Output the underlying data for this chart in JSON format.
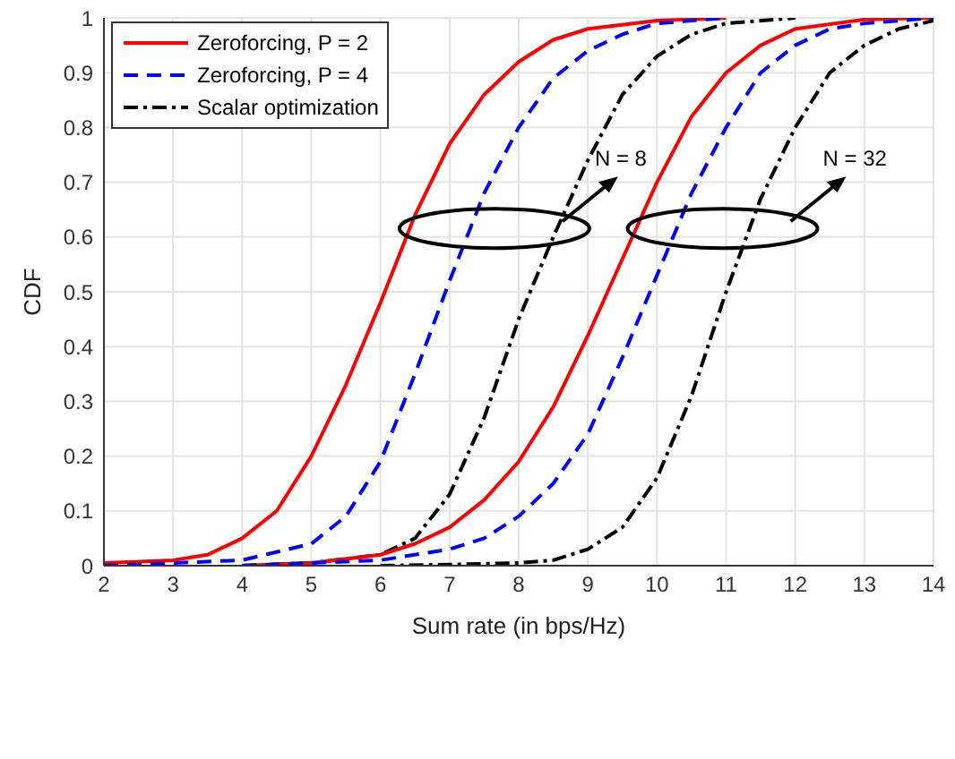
{
  "chart_data": {
    "type": "line",
    "xlabel": "Sum rate (in bps/Hz)",
    "ylabel": "CDF",
    "xlim": [
      2,
      14
    ],
    "xticks": [
      2,
      3,
      4,
      5,
      6,
      7,
      8,
      9,
      10,
      11,
      12,
      13,
      14
    ],
    "ylim": [
      0,
      1
    ],
    "yticks": [
      0,
      0.1,
      0.2,
      0.3,
      0.4,
      0.5,
      0.6,
      0.7,
      0.8,
      0.9,
      1
    ],
    "grid": true,
    "legend": "top left",
    "marker": "none",
    "annotations": [
      "N = 8",
      "N = 32"
    ],
    "series": [
      {
        "name": "Zeroforcing, P = 2",
        "color": "#ff0000",
        "line_style": "solid",
        "x": [
          2,
          3,
          3.5,
          4,
          4.5,
          5,
          5.5,
          6,
          6.5,
          7,
          7.5,
          8,
          8.5,
          9,
          10,
          11
        ],
        "values": [
          0.005,
          0.01,
          0.02,
          0.05,
          0.1,
          0.2,
          0.33,
          0.48,
          0.64,
          0.77,
          0.86,
          0.92,
          0.96,
          0.98,
          0.995,
          1
        ]
      },
      {
        "name": "Zeroforcing, P = 4",
        "color": "#0000ff",
        "line_style": "dashed",
        "x": [
          2,
          4,
          5,
          5.5,
          6,
          6.5,
          7,
          7.5,
          8,
          8.5,
          9,
          9.5,
          10,
          11
        ],
        "values": [
          0,
          0.01,
          0.04,
          0.09,
          0.19,
          0.35,
          0.52,
          0.68,
          0.8,
          0.89,
          0.94,
          0.97,
          0.99,
          1
        ]
      },
      {
        "name": "Scalar optimization",
        "color": "#000000",
        "line_style": "dashdot",
        "x": [
          4,
          5,
          6,
          6.5,
          7,
          7.5,
          8,
          8.5,
          9,
          9.5,
          10,
          10.5,
          11,
          12
        ],
        "values": [
          0,
          0.005,
          0.02,
          0.05,
          0.13,
          0.27,
          0.45,
          0.6,
          0.74,
          0.86,
          0.93,
          0.97,
          0.99,
          1
        ]
      },
      {
        "color": "#ff0000",
        "line_style": "solid",
        "x": [
          4,
          5,
          6,
          6.5,
          7,
          7.5,
          8,
          8.5,
          9,
          9.5,
          10,
          10.5,
          11,
          11.5,
          12,
          13,
          14
        ],
        "values": [
          0,
          0.005,
          0.02,
          0.04,
          0.07,
          0.12,
          0.19,
          0.29,
          0.42,
          0.56,
          0.7,
          0.82,
          0.9,
          0.95,
          0.98,
          0.997,
          1
        ]
      },
      {
        "color": "#0000ff",
        "line_style": "dashed",
        "x": [
          4,
          6,
          7,
          7.5,
          8,
          8.5,
          9,
          9.5,
          10,
          10.5,
          11,
          11.5,
          12,
          12.5,
          13,
          14
        ],
        "values": [
          0,
          0.01,
          0.03,
          0.05,
          0.09,
          0.15,
          0.24,
          0.38,
          0.53,
          0.68,
          0.8,
          0.9,
          0.95,
          0.98,
          0.99,
          1
        ]
      },
      {
        "color": "#000000",
        "line_style": "dashdot",
        "x": [
          6,
          7,
          8,
          8.5,
          9,
          9.5,
          10,
          10.5,
          11,
          11.5,
          12,
          12.5,
          13,
          13.5,
          14
        ],
        "values": [
          0,
          0.002,
          0.005,
          0.01,
          0.03,
          0.07,
          0.16,
          0.31,
          0.5,
          0.67,
          0.8,
          0.9,
          0.95,
          0.98,
          0.995
        ]
      }
    ]
  }
}
